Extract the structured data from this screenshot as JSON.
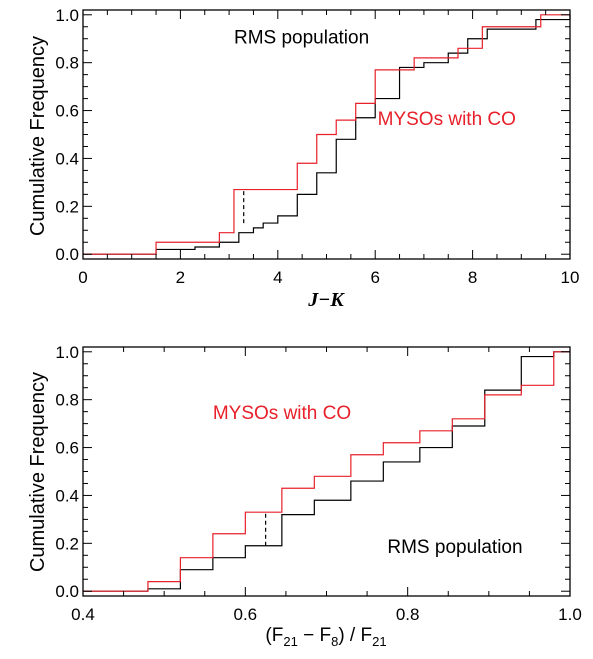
{
  "chart_data": [
    {
      "type": "line",
      "step": true,
      "xlabel": "J−K",
      "ylabel": "Cumulative Frequency",
      "xlim": [
        0,
        10
      ],
      "ylim": [
        -0.02,
        1.02
      ],
      "xticks": [
        0,
        2,
        4,
        6,
        8,
        10
      ],
      "xtick_labels": [
        "0",
        "2",
        "4",
        "6",
        "8",
        "10"
      ],
      "yticks": [
        0.0,
        0.2,
        0.4,
        0.6,
        0.8,
        1.0
      ],
      "ytick_labels": [
        "0.0",
        "0.2",
        "0.4",
        "0.6",
        "0.8",
        "1.0"
      ],
      "grid": false,
      "annotations": [
        {
          "text": "RMS population",
          "color": "#000000",
          "x": 3.1,
          "y": 0.88
        },
        {
          "text": "MYSOs with CO",
          "color": "#e8202a",
          "x": 6.05,
          "y": 0.54
        }
      ],
      "series": [
        {
          "color": "#000000",
          "x": [
            0,
            1.5,
            2.3,
            2.8,
            3.2,
            3.5,
            3.7,
            4.0,
            4.4,
            4.8,
            5.2,
            5.6,
            6.0,
            6.5,
            7.0,
            7.5,
            7.9,
            8.3,
            9.3,
            10
          ],
          "y": [
            0.0,
            0.02,
            0.03,
            0.05,
            0.09,
            0.11,
            0.13,
            0.16,
            0.25,
            0.34,
            0.48,
            0.57,
            0.65,
            0.78,
            0.8,
            0.84,
            0.9,
            0.94,
            0.98,
            1.0
          ]
        },
        {
          "color": "#e8202a",
          "x": [
            0,
            1.5,
            2.8,
            3.1,
            4.4,
            4.8,
            5.2,
            5.6,
            6.0,
            6.8,
            7.7,
            8.2,
            9.4,
            10
          ],
          "y": [
            0.0,
            0.05,
            0.09,
            0.27,
            0.38,
            0.5,
            0.56,
            0.63,
            0.77,
            0.82,
            0.86,
            0.95,
            1.0,
            1.0
          ]
        }
      ],
      "ks_marker": {
        "x": 3.3,
        "y": [
          0.13,
          0.27
        ]
      }
    },
    {
      "type": "line",
      "step": true,
      "xlabel": "(F21 − F8) / F21",
      "xlabel_parts": {
        "open": "(F",
        "sub1": "21",
        "minus": " − F",
        "sub2": "8",
        "div": ") / F",
        "sub3": "21"
      },
      "ylabel": "Cumulative Frequency",
      "xlim": [
        0.4,
        1.0
      ],
      "ylim": [
        -0.02,
        1.02
      ],
      "xticks": [
        0.4,
        0.6,
        0.8,
        1.0
      ],
      "xtick_labels": [
        "0.4",
        "0.6",
        "0.8",
        "1.0"
      ],
      "yticks": [
        0.0,
        0.2,
        0.4,
        0.6,
        0.8,
        1.0
      ],
      "ytick_labels": [
        "0.0",
        "0.2",
        "0.4",
        "0.6",
        "0.8",
        "1.0"
      ],
      "grid": false,
      "annotations": [
        {
          "text": "MYSOs with CO",
          "color": "#e8202a",
          "x": 0.56,
          "y": 0.72
        },
        {
          "text": "RMS population",
          "color": "#000000",
          "x": 0.775,
          "y": 0.16
        }
      ],
      "series": [
        {
          "color": "#000000",
          "x": [
            0.4,
            0.48,
            0.52,
            0.56,
            0.6,
            0.645,
            0.685,
            0.73,
            0.77,
            0.815,
            0.855,
            0.895,
            0.94,
            0.98,
            1.0
          ],
          "y": [
            0.0,
            0.01,
            0.09,
            0.14,
            0.19,
            0.32,
            0.38,
            0.46,
            0.54,
            0.6,
            0.69,
            0.84,
            0.98,
            1.0,
            1.0
          ]
        },
        {
          "color": "#e8202a",
          "x": [
            0.4,
            0.48,
            0.52,
            0.56,
            0.6,
            0.645,
            0.685,
            0.73,
            0.77,
            0.815,
            0.855,
            0.895,
            0.94,
            0.98,
            1.0
          ],
          "y": [
            0.0,
            0.04,
            0.14,
            0.24,
            0.33,
            0.43,
            0.48,
            0.57,
            0.62,
            0.67,
            0.72,
            0.82,
            0.86,
            1.0,
            1.0
          ]
        }
      ],
      "ks_marker": {
        "x": 0.625,
        "y": [
          0.19,
          0.33
        ]
      }
    }
  ]
}
